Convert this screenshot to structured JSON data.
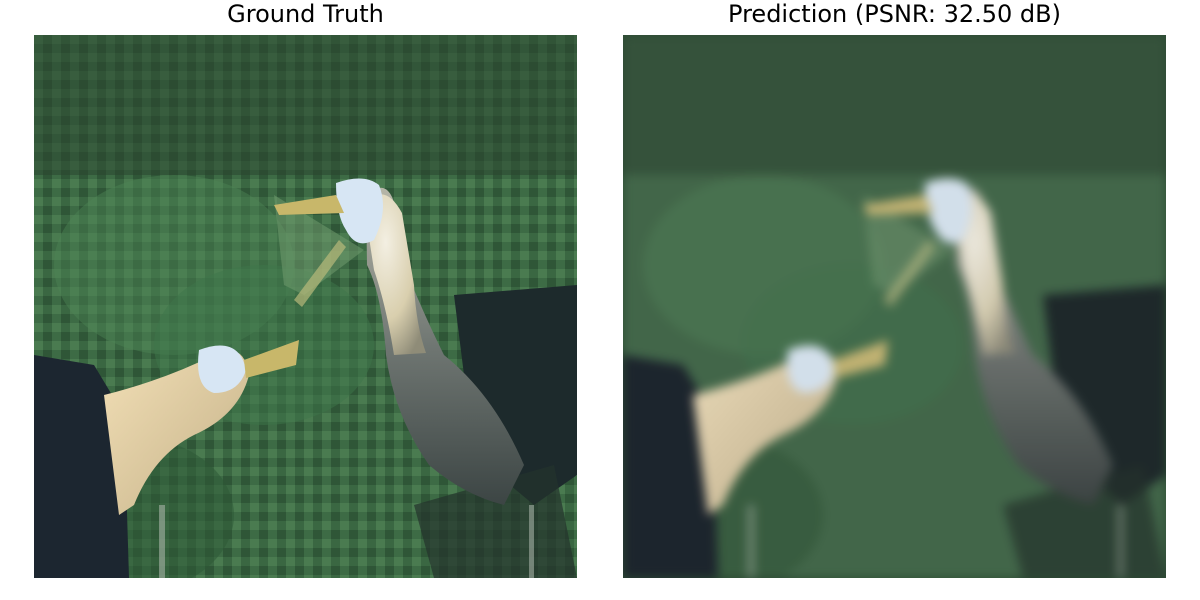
{
  "panels": {
    "left": {
      "title": "Ground Truth"
    },
    "right": {
      "title": "Prediction (PSNR: 32.50 dB)"
    }
  },
  "colors": {
    "foliage_dark": "#1f3a24",
    "foliage_mid": "#3d6b45",
    "foliage_light": "#5a8c5e",
    "shadow": "#1c2630",
    "bird_neck": "#e9e4d4",
    "bird_head": "#d7e6f4",
    "beak": "#c8b76a",
    "bird_body": "#5f6a6a"
  }
}
